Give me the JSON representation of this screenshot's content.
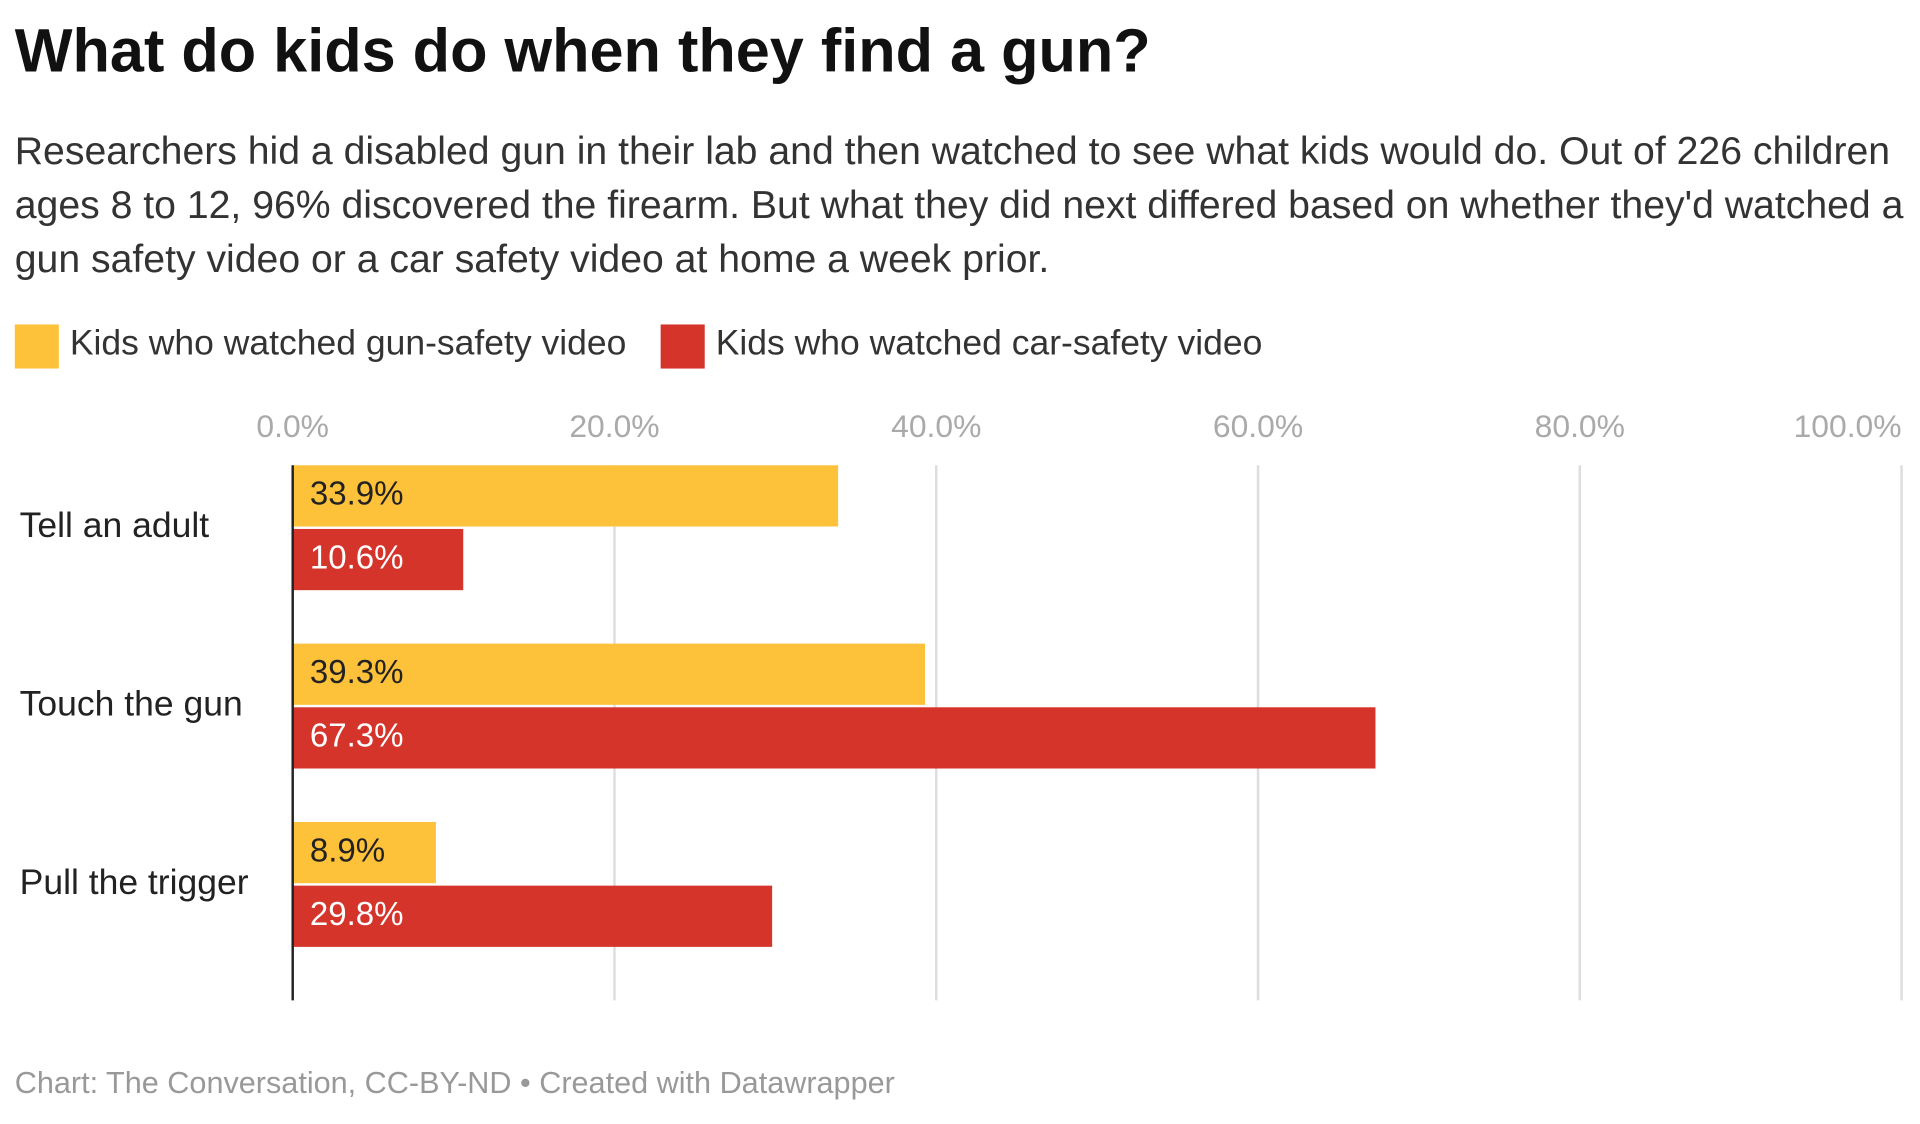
{
  "chart_data": {
    "type": "hbar",
    "title": "What do kids do when they find a gun?",
    "subtitle": "Researchers hid a disabled gun in their lab and then watched to see what kids would do. Out of 226 children ages 8 to 12, 96% discovered the firearm. But what they did next differed based on whether they'd watched a gun safety video or a car safety video at home a week prior.",
    "categories": [
      "Tell an adult",
      "Touch the gun",
      "Pull the trigger"
    ],
    "series": [
      {
        "name": "Kids who watched gun-safety video",
        "color": "#fec23a",
        "values": [
          33.9,
          39.3,
          8.9
        ],
        "value_labels": [
          "33.9%",
          "39.3%",
          "8.9%"
        ]
      },
      {
        "name": "Kids who watched car-safety video",
        "color": "#d5342b",
        "values": [
          10.6,
          67.3,
          29.8
        ],
        "value_labels": [
          "10.6%",
          "67.3%",
          "29.8%"
        ]
      }
    ],
    "xlim": [
      0,
      100
    ],
    "xticks": [
      {
        "value": 0,
        "label": "0.0%"
      },
      {
        "value": 20,
        "label": "20.0%"
      },
      {
        "value": 40,
        "label": "40.0%"
      },
      {
        "value": 60,
        "label": "60.0%"
      },
      {
        "value": 80,
        "label": "80.0%"
      },
      {
        "value": 100,
        "label": "100.0%"
      }
    ],
    "grid": true,
    "legend": "top",
    "source": "Chart: The Conversation, CC-BY-ND • Created with Datawrapper"
  }
}
